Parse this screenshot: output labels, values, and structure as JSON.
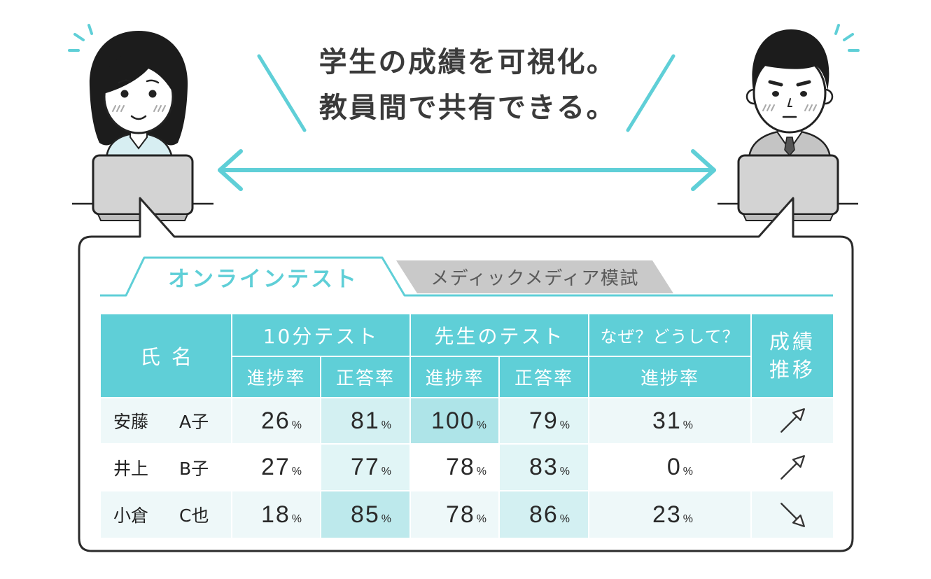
{
  "headline": {
    "line1": "学生の成績を可視化。",
    "line2": "教員間で共有できる。"
  },
  "tabs": [
    {
      "label": "オンラインテスト",
      "active": true
    },
    {
      "label": "メディックメディア模試",
      "active": false
    }
  ],
  "table": {
    "name_header": "氏名",
    "groups": [
      {
        "label": "10分テスト",
        "columns": [
          "進捗率",
          "正答率"
        ]
      },
      {
        "label": "先生のテスト",
        "columns": [
          "進捗率",
          "正答率"
        ]
      },
      {
        "label": "なぜ？どうして？",
        "columns": [
          "進捗率"
        ]
      }
    ],
    "trend_header": [
      "成績",
      "推移"
    ],
    "unit": "%",
    "rows": [
      {
        "surname": "安藤",
        "given": "A子",
        "values": [
          26,
          81,
          100,
          79,
          31
        ],
        "trend_icon": "arrow-up-right-icon"
      },
      {
        "surname": "井上",
        "given": "B子",
        "values": [
          27,
          77,
          78,
          83,
          0
        ],
        "trend_icon": "arrow-up-right-icon"
      },
      {
        "surname": "小倉",
        "given": "C也",
        "values": [
          18,
          85,
          78,
          86,
          23
        ],
        "trend_icon": "arrow-down-right-icon"
      }
    ]
  },
  "icons": [
    "sparkle-icon",
    "double-arrow-icon",
    "laptop-icon",
    "arrow-up-right-icon",
    "arrow-down-right-icon"
  ],
  "colors": {
    "accent": "#5fcfd7",
    "text": "#333333",
    "tab_inactive": "#c9c9c9",
    "row_alt": "#eef8f9",
    "cell_highlight": "#d3f0f2",
    "cell_highlight_strong": "#aee4e8"
  }
}
